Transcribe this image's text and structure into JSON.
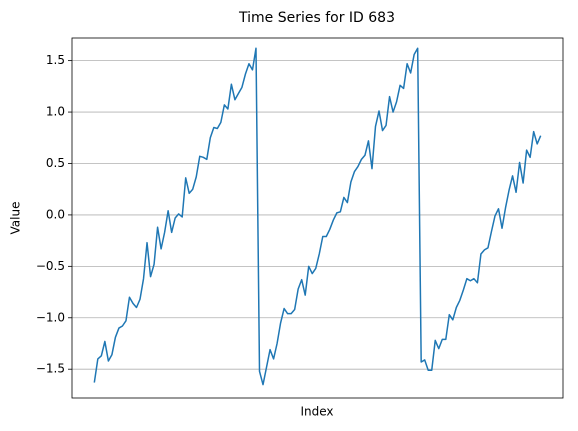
{
  "chart_data": {
    "type": "line",
    "title": "Time Series for ID 683",
    "x_label": "Index",
    "y_label": "Value",
    "series": [
      {
        "name": "ID 683",
        "color": "#1f77b4",
        "values": [
          -1.63,
          -1.4,
          -1.37,
          -1.23,
          -1.42,
          -1.36,
          -1.19,
          -1.1,
          -1.08,
          -1.03,
          -0.8,
          -0.86,
          -0.9,
          -0.82,
          -0.62,
          -0.27,
          -0.6,
          -0.48,
          -0.12,
          -0.33,
          -0.17,
          0.04,
          -0.17,
          -0.03,
          0.01,
          -0.02,
          0.36,
          0.21,
          0.25,
          0.37,
          0.57,
          0.56,
          0.54,
          0.75,
          0.85,
          0.84,
          0.9,
          1.07,
          1.03,
          1.27,
          1.12,
          1.18,
          1.24,
          1.37,
          1.47,
          1.41,
          1.62,
          -1.52,
          -1.65,
          -1.48,
          -1.31,
          -1.4,
          -1.25,
          -1.05,
          -0.91,
          -0.96,
          -0.96,
          -0.92,
          -0.72,
          -0.63,
          -0.78,
          -0.5,
          -0.57,
          -0.52,
          -0.38,
          -0.21,
          -0.21,
          -0.14,
          -0.05,
          0.02,
          0.03,
          0.17,
          0.12,
          0.32,
          0.42,
          0.47,
          0.54,
          0.58,
          0.72,
          0.45,
          0.86,
          1.01,
          0.82,
          0.87,
          1.15,
          1.0,
          1.1,
          1.26,
          1.23,
          1.47,
          1.38,
          1.56,
          1.62,
          -1.43,
          -1.41,
          -1.51,
          -1.51,
          -1.22,
          -1.3,
          -1.21,
          -1.21,
          -0.97,
          -1.02,
          -0.9,
          -0.83,
          -0.73,
          -0.62,
          -0.64,
          -0.62,
          -0.66,
          -0.38,
          -0.34,
          -0.32,
          -0.16,
          -0.01,
          0.06,
          -0.13,
          0.07,
          0.24,
          0.38,
          0.22,
          0.51,
          0.31,
          0.63,
          0.56,
          0.81,
          0.69,
          0.77
        ]
      }
    ],
    "xlim": [
      -6.35,
      133.35
    ],
    "ylim": [
      -1.78,
      1.72
    ],
    "yticks": [
      {
        "value": -1.5,
        "label": "−1.5"
      },
      {
        "value": -1.0,
        "label": "−1.0"
      },
      {
        "value": -0.5,
        "label": "−0.5"
      },
      {
        "value": 0.0,
        "label": "0.0"
      },
      0.5,
      {
        "value": 1.0,
        "label": "1.0"
      },
      1.5
    ],
    "grid": "y"
  }
}
